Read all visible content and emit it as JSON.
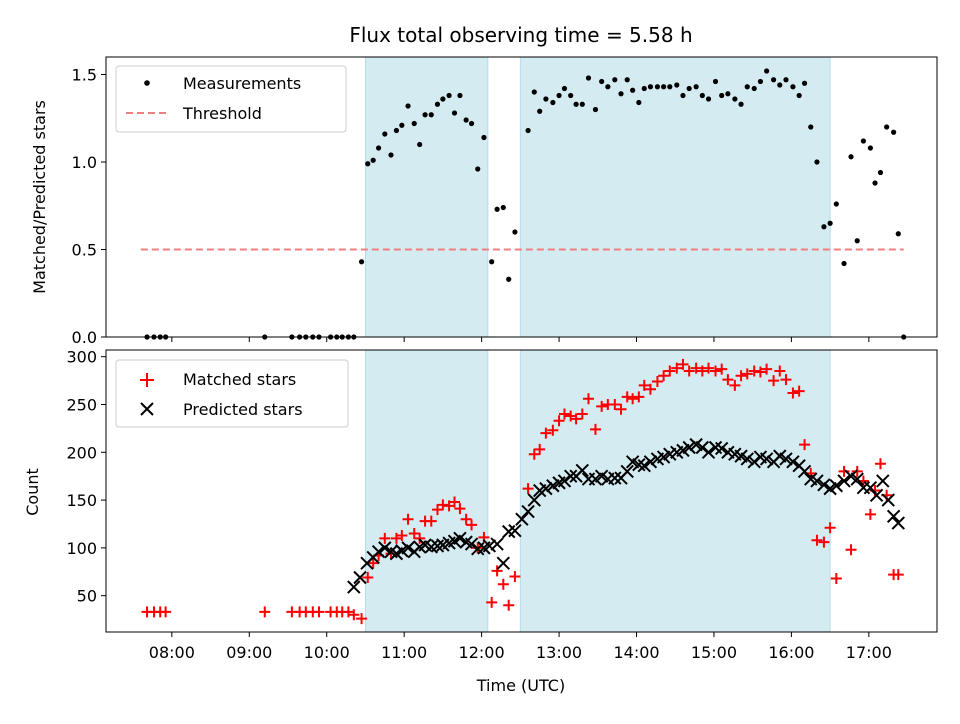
{
  "chart_data": {
    "title": "Flux total observing time = 5.58 h",
    "xlabel": "Time (UTC)",
    "x_tick_labels": [
      "08:00",
      "09:00",
      "10:00",
      "11:00",
      "12:00",
      "13:00",
      "14:00",
      "15:00",
      "16:00",
      "17:00"
    ],
    "x_ticks_hours": [
      8,
      9,
      10,
      11,
      12,
      13,
      14,
      15,
      16,
      17
    ],
    "xlim_hours": [
      7.15,
      17.88
    ],
    "shaded_intervals_hours": [
      [
        10.5,
        12.08
      ],
      [
        12.5,
        16.5
      ]
    ],
    "top": {
      "type": "scatter",
      "ylabel": "Matched/Predicted stars",
      "ylim": [
        0,
        1.6
      ],
      "y_ticks": [
        0.0,
        0.5,
        1.0,
        1.5
      ],
      "y_tick_labels": [
        "0.0",
        "0.5",
        "1.0",
        "1.5"
      ],
      "legend": [
        "Measurements",
        "Threshold"
      ],
      "threshold": {
        "value": 0.5,
        "x_range_hours": [
          7.6,
          17.45
        ],
        "color": "#f08080"
      },
      "measurements": [
        [
          7.68,
          0
        ],
        [
          7.77,
          0
        ],
        [
          7.85,
          0
        ],
        [
          7.92,
          0
        ],
        [
          9.2,
          0
        ],
        [
          9.55,
          0
        ],
        [
          9.65,
          0
        ],
        [
          9.73,
          0
        ],
        [
          9.82,
          0
        ],
        [
          9.9,
          0
        ],
        [
          10.05,
          0
        ],
        [
          10.13,
          0
        ],
        [
          10.2,
          0
        ],
        [
          10.28,
          0
        ],
        [
          10.35,
          0
        ],
        [
          10.45,
          0.43
        ],
        [
          10.53,
          0.99
        ],
        [
          10.6,
          1.01
        ],
        [
          10.67,
          1.08
        ],
        [
          10.75,
          1.16
        ],
        [
          10.83,
          1.04
        ],
        [
          10.9,
          1.18
        ],
        [
          10.97,
          1.21
        ],
        [
          11.05,
          1.32
        ],
        [
          11.13,
          1.22
        ],
        [
          11.2,
          1.1
        ],
        [
          11.27,
          1.27
        ],
        [
          11.35,
          1.27
        ],
        [
          11.43,
          1.33
        ],
        [
          11.5,
          1.36
        ],
        [
          11.58,
          1.38
        ],
        [
          11.65,
          1.28
        ],
        [
          11.72,
          1.38
        ],
        [
          11.8,
          1.24
        ],
        [
          11.87,
          1.22
        ],
        [
          11.95,
          0.96
        ],
        [
          12.03,
          1.14
        ],
        [
          12.13,
          0.43
        ],
        [
          12.2,
          0.73
        ],
        [
          12.28,
          0.74
        ],
        [
          12.35,
          0.33
        ],
        [
          12.43,
          0.6
        ],
        [
          12.6,
          1.18
        ],
        [
          12.68,
          1.4
        ],
        [
          12.75,
          1.29
        ],
        [
          12.83,
          1.36
        ],
        [
          12.92,
          1.34
        ],
        [
          13.0,
          1.38
        ],
        [
          13.07,
          1.42
        ],
        [
          13.15,
          1.38
        ],
        [
          13.22,
          1.33
        ],
        [
          13.3,
          1.33
        ],
        [
          13.38,
          1.48
        ],
        [
          13.47,
          1.3
        ],
        [
          13.55,
          1.46
        ],
        [
          13.63,
          1.43
        ],
        [
          13.72,
          1.47
        ],
        [
          13.8,
          1.39
        ],
        [
          13.88,
          1.47
        ],
        [
          13.95,
          1.41
        ],
        [
          14.03,
          1.34
        ],
        [
          14.1,
          1.42
        ],
        [
          14.18,
          1.43
        ],
        [
          14.27,
          1.43
        ],
        [
          14.35,
          1.43
        ],
        [
          14.43,
          1.43
        ],
        [
          14.52,
          1.44
        ],
        [
          14.6,
          1.38
        ],
        [
          14.68,
          1.42
        ],
        [
          14.77,
          1.43
        ],
        [
          14.85,
          1.38
        ],
        [
          14.93,
          1.36
        ],
        [
          15.02,
          1.46
        ],
        [
          15.1,
          1.38
        ],
        [
          15.18,
          1.39
        ],
        [
          15.27,
          1.36
        ],
        [
          15.35,
          1.33
        ],
        [
          15.43,
          1.43
        ],
        [
          15.52,
          1.42
        ],
        [
          15.6,
          1.46
        ],
        [
          15.68,
          1.52
        ],
        [
          15.77,
          1.47
        ],
        [
          15.85,
          1.44
        ],
        [
          15.93,
          1.47
        ],
        [
          16.02,
          1.43
        ],
        [
          16.1,
          1.38
        ],
        [
          16.17,
          1.45
        ],
        [
          16.25,
          1.2
        ],
        [
          16.33,
          1.0
        ],
        [
          16.42,
          0.63
        ],
        [
          16.5,
          0.65
        ],
        [
          16.58,
          0.76
        ],
        [
          16.68,
          0.42
        ],
        [
          16.77,
          1.03
        ],
        [
          16.85,
          0.55
        ],
        [
          16.93,
          1.12
        ],
        [
          17.02,
          1.08
        ],
        [
          17.08,
          0.88
        ],
        [
          17.15,
          0.94
        ],
        [
          17.23,
          1.2
        ],
        [
          17.32,
          1.17
        ],
        [
          17.38,
          0.59
        ],
        [
          17.45,
          0
        ]
      ]
    },
    "bottom": {
      "type": "scatter",
      "ylabel": "Count",
      "ylim": [
        12,
        307
      ],
      "y_ticks": [
        50,
        100,
        150,
        200,
        250,
        300
      ],
      "y_tick_labels": [
        "50",
        "100",
        "150",
        "200",
        "250",
        "300"
      ],
      "legend": [
        "Matched stars",
        "Predicted stars"
      ],
      "matched": [
        [
          7.68,
          33
        ],
        [
          7.77,
          33
        ],
        [
          7.85,
          33
        ],
        [
          7.92,
          33
        ],
        [
          9.2,
          33
        ],
        [
          9.55,
          33
        ],
        [
          9.65,
          33
        ],
        [
          9.73,
          33
        ],
        [
          9.82,
          33
        ],
        [
          9.9,
          33
        ],
        [
          10.05,
          33
        ],
        [
          10.13,
          33
        ],
        [
          10.2,
          33
        ],
        [
          10.28,
          33
        ],
        [
          10.35,
          30
        ],
        [
          10.45,
          26
        ],
        [
          10.53,
          69
        ],
        [
          10.6,
          84
        ],
        [
          10.67,
          92
        ],
        [
          10.75,
          110
        ],
        [
          10.83,
          94
        ],
        [
          10.9,
          110
        ],
        [
          10.97,
          113
        ],
        [
          11.05,
          130
        ],
        [
          11.13,
          115
        ],
        [
          11.2,
          110
        ],
        [
          11.27,
          128
        ],
        [
          11.35,
          128
        ],
        [
          11.43,
          140
        ],
        [
          11.5,
          145
        ],
        [
          11.58,
          144
        ],
        [
          11.65,
          148
        ],
        [
          11.72,
          141
        ],
        [
          11.8,
          130
        ],
        [
          11.87,
          124
        ],
        [
          11.95,
          100
        ],
        [
          12.03,
          111
        ],
        [
          12.13,
          43
        ],
        [
          12.2,
          76
        ],
        [
          12.28,
          62
        ],
        [
          12.35,
          40
        ],
        [
          12.43,
          70
        ],
        [
          12.6,
          162
        ],
        [
          12.68,
          198
        ],
        [
          12.75,
          203
        ],
        [
          12.83,
          220
        ],
        [
          12.92,
          223
        ],
        [
          13.0,
          233
        ],
        [
          13.07,
          240
        ],
        [
          13.15,
          238
        ],
        [
          13.22,
          235
        ],
        [
          13.3,
          240
        ],
        [
          13.38,
          256
        ],
        [
          13.47,
          224
        ],
        [
          13.55,
          248
        ],
        [
          13.63,
          250
        ],
        [
          13.72,
          250
        ],
        [
          13.8,
          245
        ],
        [
          13.88,
          258
        ],
        [
          13.95,
          256
        ],
        [
          14.03,
          258
        ],
        [
          14.1,
          270
        ],
        [
          14.18,
          266
        ],
        [
          14.27,
          274
        ],
        [
          14.35,
          280
        ],
        [
          14.43,
          285
        ],
        [
          14.52,
          288
        ],
        [
          14.6,
          292
        ],
        [
          14.68,
          285
        ],
        [
          14.77,
          288
        ],
        [
          14.85,
          285
        ],
        [
          14.93,
          288
        ],
        [
          15.02,
          285
        ],
        [
          15.1,
          287
        ],
        [
          15.18,
          276
        ],
        [
          15.27,
          270
        ],
        [
          15.35,
          280
        ],
        [
          15.43,
          282
        ],
        [
          15.52,
          285
        ],
        [
          15.6,
          284
        ],
        [
          15.68,
          287
        ],
        [
          15.77,
          275
        ],
        [
          15.85,
          285
        ],
        [
          15.93,
          276
        ],
        [
          16.02,
          262
        ],
        [
          16.1,
          264
        ],
        [
          16.17,
          208
        ],
        [
          16.25,
          178
        ],
        [
          16.33,
          108
        ],
        [
          16.42,
          106
        ],
        [
          16.5,
          121
        ],
        [
          16.58,
          68
        ],
        [
          16.68,
          180
        ],
        [
          16.77,
          98
        ],
        [
          16.85,
          180
        ],
        [
          16.93,
          170
        ],
        [
          17.02,
          135
        ],
        [
          17.08,
          160
        ],
        [
          17.15,
          188
        ],
        [
          17.23,
          155
        ],
        [
          17.32,
          72
        ],
        [
          17.38,
          72
        ]
      ],
      "predicted": [
        [
          10.35,
          59
        ],
        [
          10.43,
          69
        ],
        [
          10.52,
          84
        ],
        [
          10.6,
          90
        ],
        [
          10.67,
          96
        ],
        [
          10.75,
          100
        ],
        [
          10.83,
          96
        ],
        [
          10.9,
          94
        ],
        [
          10.97,
          97
        ],
        [
          11.05,
          100
        ],
        [
          11.13,
          96
        ],
        [
          11.2,
          101
        ],
        [
          11.27,
          103
        ],
        [
          11.35,
          101
        ],
        [
          11.43,
          102
        ],
        [
          11.5,
          103
        ],
        [
          11.58,
          105
        ],
        [
          11.65,
          107
        ],
        [
          11.72,
          110
        ],
        [
          11.8,
          106
        ],
        [
          11.87,
          104
        ],
        [
          11.95,
          99
        ],
        [
          12.03,
          100
        ],
        [
          12.1,
          102
        ],
        [
          12.2,
          104
        ],
        [
          12.28,
          84
        ],
        [
          12.35,
          117
        ],
        [
          12.43,
          118
        ],
        [
          12.52,
          130
        ],
        [
          12.6,
          138
        ],
        [
          12.68,
          150
        ],
        [
          12.75,
          160
        ],
        [
          12.83,
          162
        ],
        [
          12.92,
          165
        ],
        [
          13.0,
          168
        ],
        [
          13.07,
          170
        ],
        [
          13.15,
          175
        ],
        [
          13.22,
          175
        ],
        [
          13.3,
          181
        ],
        [
          13.38,
          172
        ],
        [
          13.47,
          172
        ],
        [
          13.55,
          175
        ],
        [
          13.63,
          172
        ],
        [
          13.72,
          173
        ],
        [
          13.8,
          173
        ],
        [
          13.88,
          180
        ],
        [
          13.95,
          190
        ],
        [
          14.03,
          187
        ],
        [
          14.1,
          186
        ],
        [
          14.18,
          190
        ],
        [
          14.27,
          193
        ],
        [
          14.35,
          195
        ],
        [
          14.43,
          198
        ],
        [
          14.52,
          200
        ],
        [
          14.6,
          202
        ],
        [
          14.68,
          205
        ],
        [
          14.77,
          208
        ],
        [
          14.85,
          205
        ],
        [
          14.93,
          200
        ],
        [
          15.02,
          205
        ],
        [
          15.1,
          204
        ],
        [
          15.18,
          200
        ],
        [
          15.27,
          198
        ],
        [
          15.35,
          196
        ],
        [
          15.43,
          193
        ],
        [
          15.52,
          190
        ],
        [
          15.6,
          195
        ],
        [
          15.68,
          193
        ],
        [
          15.77,
          190
        ],
        [
          15.85,
          196
        ],
        [
          15.93,
          193
        ],
        [
          16.02,
          190
        ],
        [
          16.1,
          186
        ],
        [
          16.17,
          180
        ],
        [
          16.25,
          172
        ],
        [
          16.33,
          170
        ],
        [
          16.42,
          166
        ],
        [
          16.5,
          162
        ],
        [
          16.58,
          165
        ],
        [
          16.68,
          170
        ],
        [
          16.77,
          175
        ],
        [
          16.85,
          172
        ],
        [
          16.93,
          163
        ],
        [
          17.02,
          163
        ],
        [
          17.1,
          155
        ],
        [
          17.18,
          170
        ],
        [
          17.25,
          150
        ],
        [
          17.32,
          133
        ],
        [
          17.38,
          126
        ]
      ]
    }
  },
  "colors": {
    "shade": "#d5ebf2",
    "matched": "#ff0000",
    "predicted": "#000000",
    "measurement": "#000000",
    "threshold": "#f08080"
  }
}
